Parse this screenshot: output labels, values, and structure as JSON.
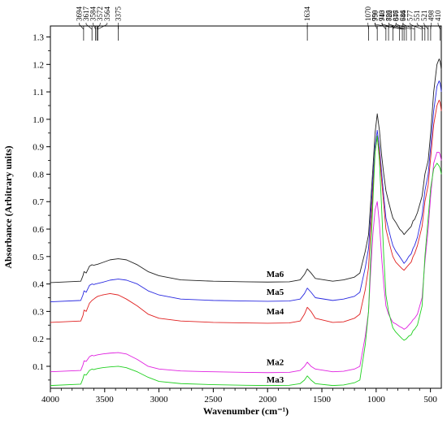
{
  "chart_data": {
    "type": "line",
    "title": "",
    "xlabel": "Wavenumber (cm⁻¹)",
    "ylabel": "Absorbance (Arbitrary units)",
    "xlim": [
      4000,
      400
    ],
    "ylim": [
      0.02,
      1.34
    ],
    "x_reversed": true,
    "grid": false,
    "legend": "none",
    "x_ticks": [
      4000,
      3500,
      3000,
      2500,
      2000,
      1500,
      1000,
      500
    ],
    "x_tick_labels": [
      "4000",
      "3500",
      "3000",
      "2500",
      "2000",
      "1500",
      "1000",
      "500"
    ],
    "y_ticks": [
      0.1,
      0.2,
      0.3,
      0.4,
      0.5,
      0.6,
      0.7,
      0.8,
      0.9,
      1.0,
      1.1,
      1.2,
      1.3
    ],
    "y_tick_labels": [
      "0.1",
      "0.2",
      "0.3",
      "0.4",
      "0.5",
      "0.6",
      "0.7",
      "0.8",
      "0.9",
      "1.0",
      "1.1",
      "1.2",
      "1.3"
    ],
    "peak_labels": [
      "3694",
      "3617",
      "3584",
      "3572",
      "3564",
      "3375",
      "1634",
      "1070",
      "990",
      "910",
      "886",
      "846",
      "784",
      "759",
      "743",
      "722",
      "677",
      "646",
      "577",
      "551",
      "521",
      "498",
      "410"
    ],
    "peak_positions": [
      3694,
      3617,
      3584,
      3572,
      3564,
      3375,
      1634,
      1070,
      990,
      910,
      886,
      846,
      784,
      759,
      743,
      722,
      677,
      646,
      577,
      551,
      521,
      498,
      410
    ],
    "series": [
      {
        "name": "Ma6",
        "color": "#222222",
        "label_at": [
          2010,
          0.425
        ],
        "x": [
          4000,
          3720,
          3700,
          3690,
          3670,
          3640,
          3617,
          3600,
          3584,
          3564,
          3520,
          3450,
          3375,
          3300,
          3200,
          3100,
          3000,
          2800,
          2500,
          2200,
          2000,
          1800,
          1700,
          1660,
          1634,
          1600,
          1560,
          1400,
          1300,
          1200,
          1150,
          1100,
          1070,
          1050,
          1030,
          1010,
          990,
          970,
          950,
          930,
          910,
          886,
          860,
          846,
          820,
          784,
          759,
          743,
          722,
          700,
          677,
          660,
          646,
          620,
          577,
          551,
          521,
          498,
          470,
          440,
          420,
          410,
          400
        ],
        "y": [
          0.405,
          0.41,
          0.43,
          0.445,
          0.44,
          0.465,
          0.47,
          0.468,
          0.47,
          0.472,
          0.478,
          0.488,
          0.492,
          0.488,
          0.47,
          0.445,
          0.43,
          0.415,
          0.41,
          0.408,
          0.407,
          0.408,
          0.415,
          0.435,
          0.455,
          0.44,
          0.42,
          0.41,
          0.415,
          0.425,
          0.44,
          0.52,
          0.58,
          0.7,
          0.82,
          0.95,
          1.02,
          0.96,
          0.87,
          0.8,
          0.74,
          0.7,
          0.66,
          0.64,
          0.625,
          0.6,
          0.59,
          0.58,
          0.59,
          0.6,
          0.61,
          0.63,
          0.635,
          0.66,
          0.72,
          0.8,
          0.85,
          0.95,
          1.1,
          1.2,
          1.22,
          1.21,
          1.18
        ]
      },
      {
        "name": "Ma5",
        "color": "#2828e0",
        "label_at": [
          2010,
          0.36
        ],
        "x": [
          4000,
          3720,
          3700,
          3690,
          3670,
          3640,
          3617,
          3600,
          3584,
          3564,
          3520,
          3450,
          3375,
          3300,
          3200,
          3100,
          3000,
          2800,
          2500,
          2200,
          2000,
          1800,
          1700,
          1660,
          1634,
          1600,
          1560,
          1400,
          1300,
          1200,
          1150,
          1100,
          1070,
          1050,
          1030,
          1010,
          990,
          970,
          950,
          930,
          910,
          886,
          860,
          846,
          820,
          784,
          759,
          743,
          722,
          700,
          677,
          660,
          646,
          620,
          577,
          551,
          521,
          498,
          470,
          440,
          420,
          410,
          400
        ],
        "y": [
          0.335,
          0.34,
          0.36,
          0.375,
          0.37,
          0.395,
          0.4,
          0.398,
          0.4,
          0.402,
          0.406,
          0.414,
          0.418,
          0.414,
          0.4,
          0.375,
          0.36,
          0.345,
          0.34,
          0.338,
          0.337,
          0.338,
          0.345,
          0.365,
          0.385,
          0.37,
          0.35,
          0.34,
          0.345,
          0.355,
          0.37,
          0.46,
          0.53,
          0.65,
          0.78,
          0.9,
          0.96,
          0.9,
          0.81,
          0.72,
          0.64,
          0.6,
          0.56,
          0.54,
          0.52,
          0.5,
          0.485,
          0.475,
          0.485,
          0.5,
          0.51,
          0.53,
          0.54,
          0.57,
          0.65,
          0.74,
          0.8,
          0.9,
          1.03,
          1.12,
          1.14,
          1.13,
          1.1
        ]
      },
      {
        "name": "Ma4",
        "color": "#e02020",
        "label_at": [
          2010,
          0.29
        ],
        "x": [
          4000,
          3720,
          3700,
          3690,
          3670,
          3640,
          3617,
          3600,
          3584,
          3564,
          3520,
          3450,
          3375,
          3300,
          3200,
          3100,
          3000,
          2800,
          2500,
          2200,
          2000,
          1800,
          1700,
          1660,
          1634,
          1600,
          1560,
          1400,
          1300,
          1200,
          1150,
          1100,
          1070,
          1050,
          1030,
          1010,
          990,
          970,
          950,
          930,
          910,
          886,
          860,
          846,
          820,
          784,
          759,
          743,
          722,
          700,
          677,
          660,
          646,
          620,
          577,
          551,
          521,
          498,
          470,
          440,
          420,
          410,
          400
        ],
        "y": [
          0.26,
          0.265,
          0.285,
          0.305,
          0.3,
          0.33,
          0.34,
          0.345,
          0.35,
          0.355,
          0.36,
          0.365,
          0.36,
          0.345,
          0.32,
          0.29,
          0.275,
          0.265,
          0.26,
          0.258,
          0.257,
          0.258,
          0.265,
          0.29,
          0.315,
          0.3,
          0.275,
          0.26,
          0.262,
          0.275,
          0.29,
          0.38,
          0.46,
          0.6,
          0.74,
          0.88,
          0.94,
          0.88,
          0.78,
          0.69,
          0.6,
          0.56,
          0.52,
          0.5,
          0.48,
          0.465,
          0.455,
          0.45,
          0.46,
          0.47,
          0.48,
          0.5,
          0.51,
          0.54,
          0.61,
          0.7,
          0.76,
          0.86,
          0.98,
          1.05,
          1.07,
          1.06,
          1.03
        ]
      },
      {
        "name": "Ma2",
        "color": "#e020e0",
        "label_at": [
          2010,
          0.105
        ],
        "x": [
          4000,
          3720,
          3700,
          3690,
          3670,
          3640,
          3617,
          3600,
          3584,
          3564,
          3520,
          3450,
          3375,
          3300,
          3200,
          3100,
          3000,
          2800,
          2500,
          2200,
          2000,
          1800,
          1700,
          1660,
          1634,
          1600,
          1560,
          1400,
          1300,
          1200,
          1150,
          1100,
          1070,
          1050,
          1030,
          1010,
          990,
          970,
          950,
          930,
          910,
          886,
          860,
          846,
          820,
          784,
          759,
          743,
          722,
          700,
          677,
          660,
          646,
          620,
          577,
          551,
          521,
          498,
          470,
          440,
          420,
          410,
          400
        ],
        "y": [
          0.08,
          0.085,
          0.105,
          0.12,
          0.118,
          0.135,
          0.14,
          0.138,
          0.14,
          0.142,
          0.145,
          0.148,
          0.15,
          0.145,
          0.125,
          0.1,
          0.09,
          0.083,
          0.08,
          0.078,
          0.077,
          0.078,
          0.085,
          0.1,
          0.115,
          0.1,
          0.09,
          0.08,
          0.082,
          0.09,
          0.1,
          0.21,
          0.3,
          0.45,
          0.58,
          0.67,
          0.7,
          0.62,
          0.5,
          0.4,
          0.32,
          0.29,
          0.27,
          0.26,
          0.255,
          0.245,
          0.24,
          0.235,
          0.24,
          0.25,
          0.26,
          0.27,
          0.275,
          0.29,
          0.35,
          0.48,
          0.6,
          0.72,
          0.84,
          0.88,
          0.88,
          0.87,
          0.85
        ]
      },
      {
        "name": "Ma3",
        "color": "#20d020",
        "label_at": [
          2010,
          0.04
        ],
        "x": [
          4000,
          3720,
          3700,
          3690,
          3670,
          3640,
          3617,
          3600,
          3584,
          3564,
          3520,
          3450,
          3375,
          3300,
          3200,
          3100,
          3000,
          2800,
          2500,
          2200,
          2000,
          1800,
          1700,
          1660,
          1634,
          1600,
          1560,
          1400,
          1300,
          1200,
          1150,
          1100,
          1070,
          1050,
          1030,
          1010,
          990,
          970,
          950,
          930,
          910,
          886,
          860,
          846,
          820,
          784,
          759,
          743,
          722,
          700,
          677,
          660,
          646,
          620,
          577,
          551,
          521,
          498,
          470,
          440,
          420,
          410,
          400
        ],
        "y": [
          0.03,
          0.035,
          0.055,
          0.07,
          0.068,
          0.085,
          0.09,
          0.088,
          0.09,
          0.092,
          0.095,
          0.098,
          0.1,
          0.095,
          0.08,
          0.06,
          0.045,
          0.037,
          0.033,
          0.031,
          0.03,
          0.031,
          0.037,
          0.05,
          0.065,
          0.05,
          0.037,
          0.03,
          0.032,
          0.04,
          0.05,
          0.18,
          0.3,
          0.5,
          0.7,
          0.88,
          0.94,
          0.85,
          0.68,
          0.5,
          0.36,
          0.3,
          0.26,
          0.24,
          0.225,
          0.21,
          0.2,
          0.195,
          0.2,
          0.21,
          0.215,
          0.23,
          0.235,
          0.25,
          0.32,
          0.5,
          0.64,
          0.75,
          0.82,
          0.84,
          0.83,
          0.82,
          0.8
        ]
      }
    ]
  }
}
